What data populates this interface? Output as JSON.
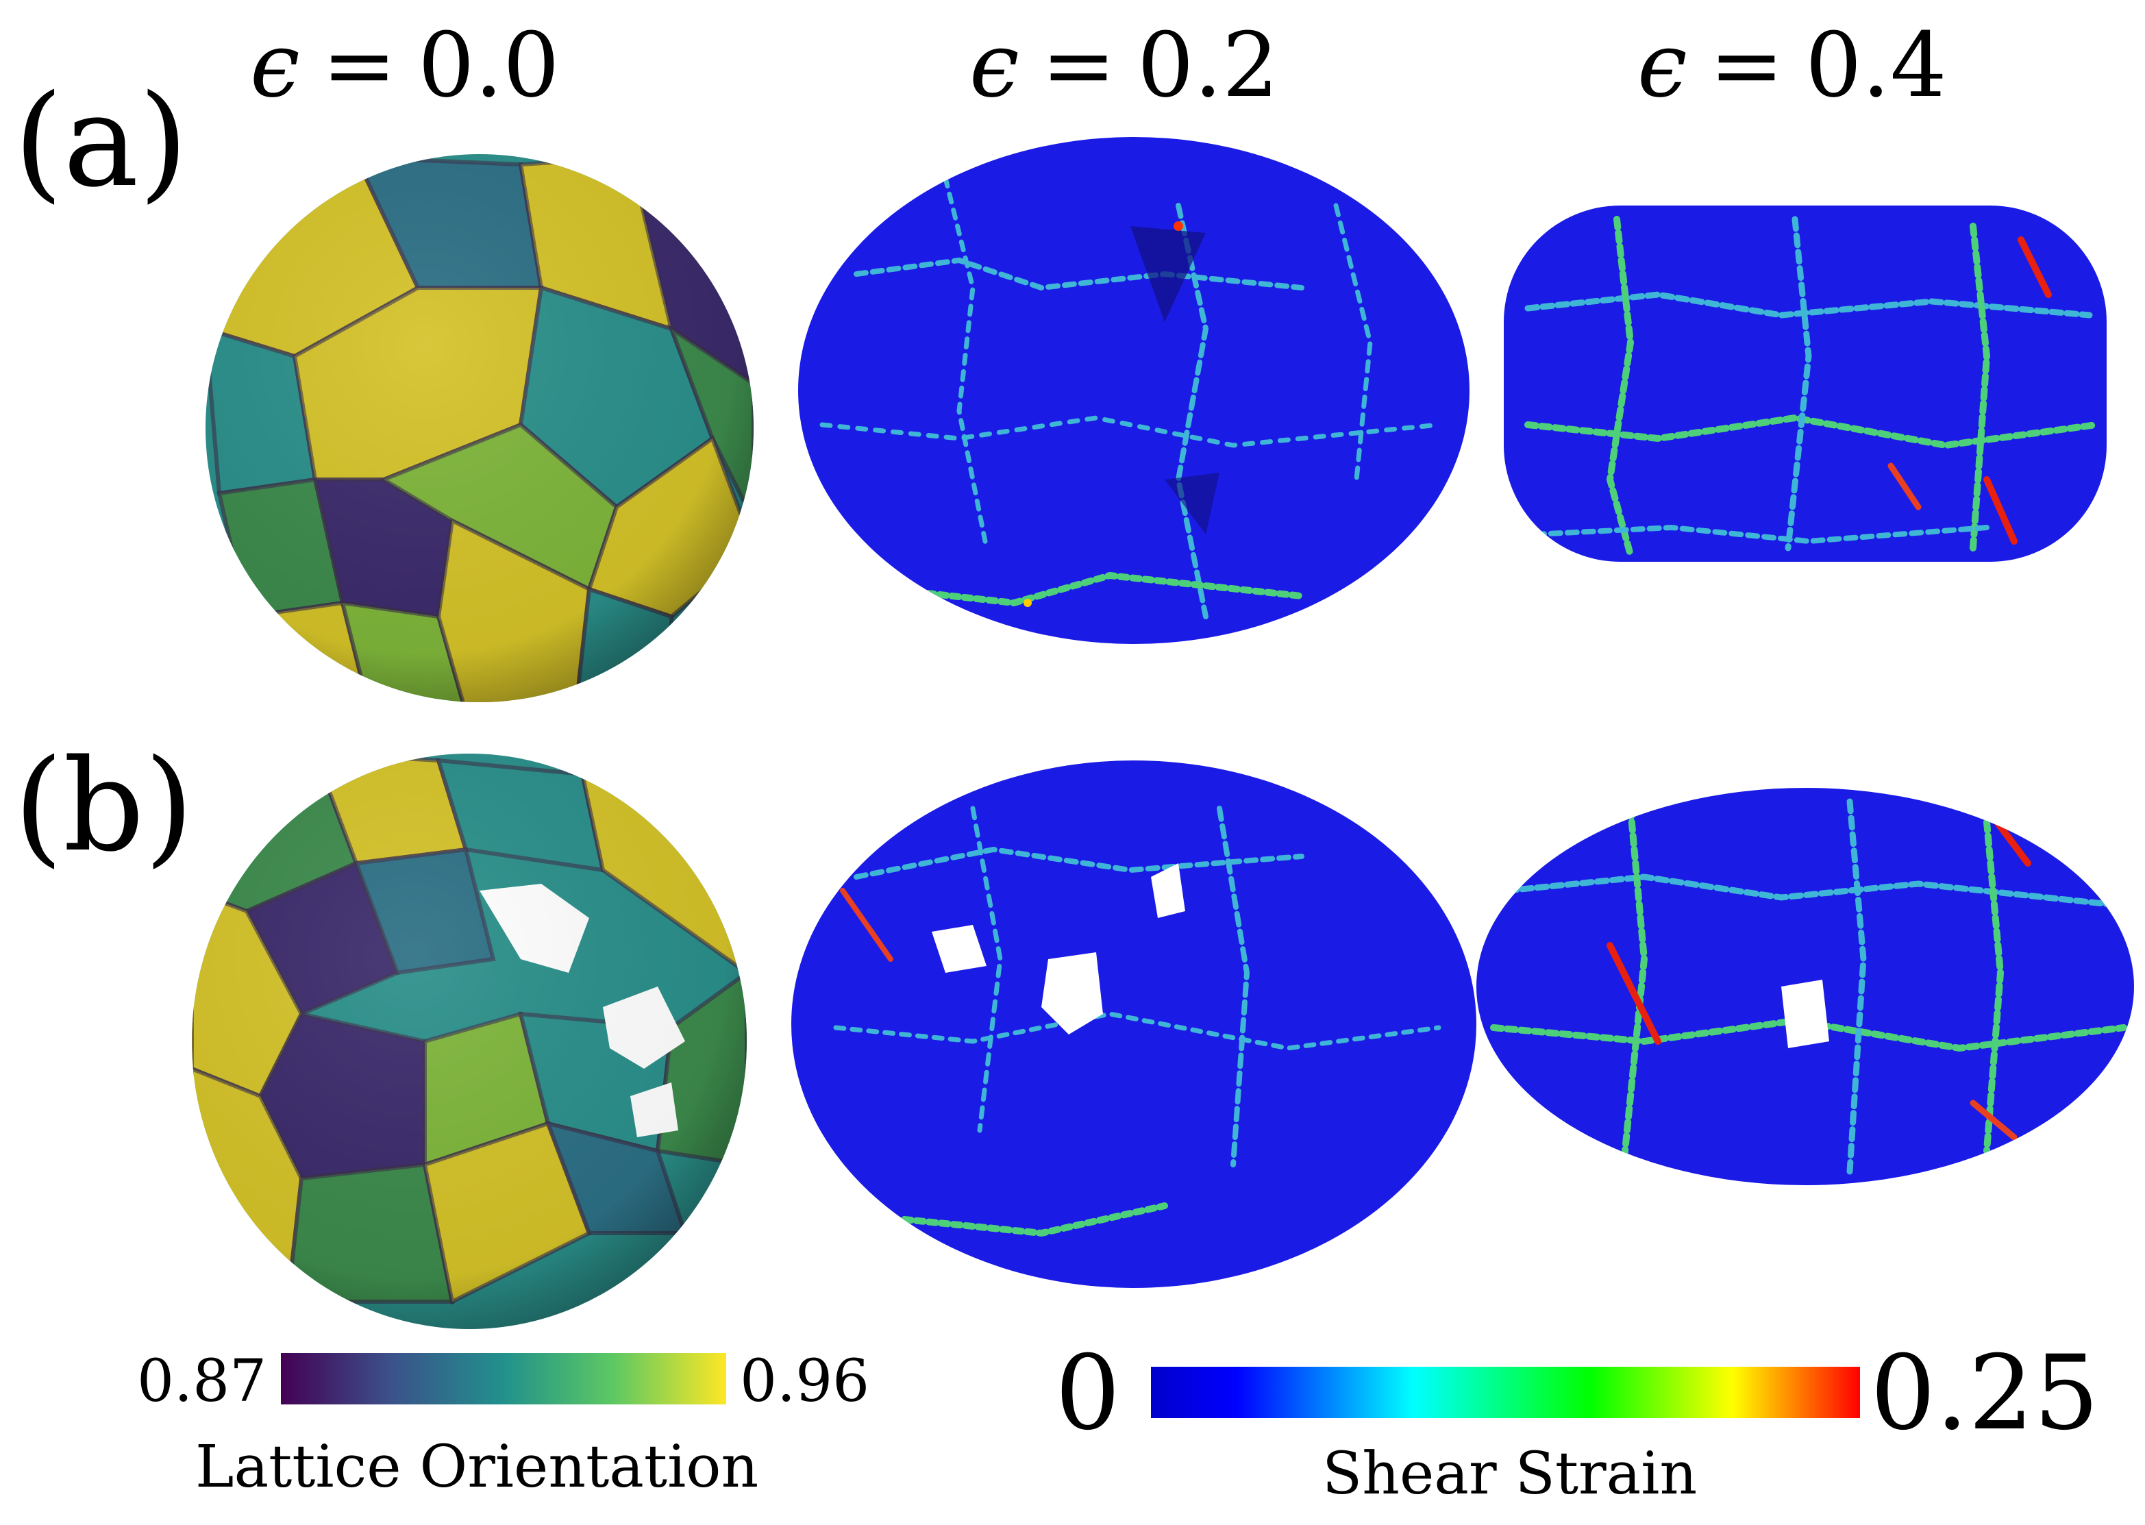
{
  "panel_labels": [
    "(a)",
    "(b)"
  ],
  "column_headers": [
    {
      "symbol": "ϵ",
      "equals": "=",
      "value": "0.0"
    },
    {
      "symbol": "ϵ",
      "equals": "=",
      "value": "0.2"
    },
    {
      "symbol": "ϵ",
      "equals": "=",
      "value": "0.4"
    }
  ],
  "colorbars": {
    "orientation": {
      "label": "Lattice Orientation",
      "min_label": "0.87",
      "max_label": "0.96",
      "colormap": "viridis",
      "stops": [
        "#440154",
        "#3b528b",
        "#21918c",
        "#5ec962",
        "#fde725"
      ]
    },
    "shear": {
      "label": "Shear Strain",
      "min_label": "0",
      "max_label": "0.25",
      "colormap": "jet",
      "stops": [
        "#0000cc",
        "#0000ff",
        "#00ffff",
        "#00ff00",
        "#ffff00",
        "#ff0000"
      ]
    }
  },
  "colors": {
    "shear_background": "#1b1be6",
    "grain_palette": [
      "#d4c228",
      "#2a8f8a",
      "#3c8a4c",
      "#7eb53a",
      "#2c6f85",
      "#3b2a6b",
      "#b9b52c"
    ]
  }
}
